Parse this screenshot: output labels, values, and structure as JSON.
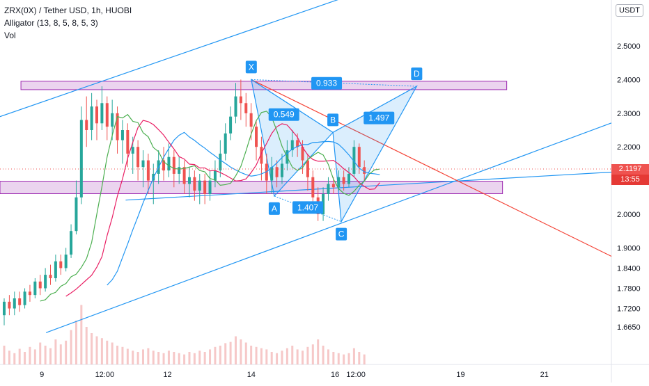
{
  "header": {
    "symbol_line": "ZRX(0X) / Tether USD, 1h, HUOBI",
    "indicator_line": "Alligator (13, 8, 5, 8, 5, 3)",
    "volume_line": "Vol"
  },
  "currency_label": "USDT",
  "last_price": {
    "value": "2.1197",
    "countdown": "13:55"
  },
  "colors": {
    "jaw": "#2196f3",
    "teeth": "#e91e63",
    "lips": "#4caf50",
    "candle_up": "#26a69a",
    "candle_down": "#ef5350",
    "volume": "#ef9a9a",
    "channel": "#2196f3",
    "pattern": "#2196f3",
    "zone": "#9c27b0",
    "downtrend": "#f44336",
    "price_tag_top": "#ef5350",
    "price_tag_bottom": "#e53935"
  },
  "chart_data": {
    "type": "candlestick",
    "y_axis_ticks": [
      "2.5000",
      "2.4000",
      "2.3000",
      "2.2000",
      "2.1000",
      "2.0000",
      "1.9000",
      "1.8400",
      "1.7800",
      "1.7200",
      "1.6650"
    ],
    "y_axis_ticks_values": [
      2.5,
      2.4,
      2.3,
      2.2,
      2.1,
      2.0,
      1.9,
      1.84,
      1.78,
      1.72,
      1.665
    ],
    "x_axis_ticks": [
      {
        "label": "9",
        "x": 8.0
      },
      {
        "label": "12:00",
        "x": 9.5
      },
      {
        "label": "12",
        "x": 11.0
      },
      {
        "label": "14",
        "x": 13.0
      },
      {
        "label": "16",
        "x": 15.0
      },
      {
        "label": "12:00",
        "x": 15.5
      },
      {
        "label": "19",
        "x": 18.0
      },
      {
        "label": "21",
        "x": 20.0
      }
    ],
    "x_range": [
      7.0,
      21.6
    ],
    "harmonic_pattern": {
      "points": [
        {
          "label": "X",
          "x": 13.0,
          "y": 2.4
        },
        {
          "label": "A",
          "x": 13.55,
          "y": 2.054
        },
        {
          "label": "B",
          "x": 14.95,
          "y": 2.243
        },
        {
          "label": "C",
          "x": 15.15,
          "y": 1.978
        },
        {
          "label": "D",
          "x": 16.95,
          "y": 2.38
        }
      ],
      "ratios": [
        {
          "label": "0.549",
          "x": 13.78,
          "y": 2.296
        },
        {
          "label": "1.497",
          "x": 16.05,
          "y": 2.286
        },
        {
          "label": "1.407",
          "x": 14.35,
          "y": 2.02
        },
        {
          "label": "0.933",
          "x": 14.8,
          "y": 2.389
        }
      ]
    },
    "resistance_zone": {
      "x_from": 7.5,
      "x_to": 19.1,
      "y_low": 2.37,
      "y_high": 2.395
    },
    "support_zone": {
      "x_from": 7.0,
      "x_to": 19.0,
      "y_low": 2.061,
      "y_high": 2.098
    },
    "channel_lines": [
      {
        "x1": 7.0,
        "y1": 2.29,
        "x2": 18.5,
        "y2": 2.785
      },
      {
        "x1": 8.1,
        "y1": 1.648,
        "x2": 21.6,
        "y2": 2.271
      },
      {
        "x1": 10.0,
        "y1": 2.042,
        "x2": 21.6,
        "y2": 2.125
      }
    ],
    "downtrend_line": {
      "x1": 13.0,
      "y1": 2.4,
      "x2": 21.6,
      "y2": 1.875
    },
    "series": [
      {
        "name": "candles",
        "open_close_note": "synthetic reading"
      }
    ],
    "candles": [
      [
        1.7,
        1.74,
        1.67,
        1.75
      ],
      [
        1.74,
        1.72,
        1.7,
        1.76
      ],
      [
        1.72,
        1.75,
        1.7,
        1.77
      ],
      [
        1.75,
        1.73,
        1.71,
        1.77
      ],
      [
        1.73,
        1.77,
        1.72,
        1.78
      ],
      [
        1.77,
        1.76,
        1.74,
        1.79
      ],
      [
        1.76,
        1.8,
        1.75,
        1.81
      ],
      [
        1.8,
        1.78,
        1.76,
        1.82
      ],
      [
        1.78,
        1.82,
        1.77,
        1.84
      ],
      [
        1.82,
        1.81,
        1.79,
        1.85
      ],
      [
        1.81,
        1.86,
        1.8,
        1.88
      ],
      [
        1.86,
        1.84,
        1.82,
        1.88
      ],
      [
        1.84,
        1.88,
        1.83,
        1.9
      ],
      [
        1.88,
        1.95,
        1.87,
        1.97
      ],
      [
        1.95,
        2.05,
        1.94,
        2.1
      ],
      [
        2.05,
        2.28,
        2.03,
        2.32
      ],
      [
        2.28,
        2.25,
        2.2,
        2.35
      ],
      [
        2.25,
        2.32,
        2.22,
        2.36
      ],
      [
        2.32,
        2.27,
        2.22,
        2.34
      ],
      [
        2.27,
        2.33,
        2.25,
        2.38
      ],
      [
        2.33,
        2.26,
        2.22,
        2.35
      ],
      [
        2.26,
        2.3,
        2.22,
        2.34
      ],
      [
        2.3,
        2.22,
        2.18,
        2.32
      ],
      [
        2.22,
        2.25,
        2.15,
        2.28
      ],
      [
        2.25,
        2.18,
        2.14,
        2.27
      ],
      [
        2.18,
        2.2,
        2.12,
        2.23
      ],
      [
        2.2,
        2.14,
        2.1,
        2.22
      ],
      [
        2.14,
        2.16,
        2.08,
        2.19
      ],
      [
        2.16,
        2.1,
        2.06,
        2.18
      ],
      [
        2.1,
        2.12,
        2.03,
        2.15
      ],
      [
        2.12,
        2.16,
        2.09,
        2.19
      ],
      [
        2.16,
        2.13,
        2.1,
        2.2
      ],
      [
        2.13,
        2.17,
        2.11,
        2.21
      ],
      [
        2.17,
        2.12,
        2.08,
        2.19
      ],
      [
        2.12,
        2.14,
        2.09,
        2.17
      ],
      [
        2.14,
        2.09,
        2.06,
        2.16
      ],
      [
        2.09,
        2.11,
        2.05,
        2.14
      ],
      [
        2.11,
        2.07,
        2.04,
        2.13
      ],
      [
        2.07,
        2.1,
        2.03,
        2.12
      ],
      [
        2.1,
        2.06,
        2.03,
        2.12
      ],
      [
        2.06,
        2.1,
        2.04,
        2.13
      ],
      [
        2.1,
        2.13,
        2.08,
        2.16
      ],
      [
        2.13,
        2.18,
        2.11,
        2.22
      ],
      [
        2.18,
        2.24,
        2.16,
        2.27
      ],
      [
        2.24,
        2.29,
        2.22,
        2.32
      ],
      [
        2.29,
        2.35,
        2.27,
        2.39
      ],
      [
        2.35,
        2.33,
        2.28,
        2.4
      ],
      [
        2.33,
        2.3,
        2.26,
        2.36
      ],
      [
        2.3,
        2.26,
        2.22,
        2.33
      ],
      [
        2.26,
        2.2,
        2.16,
        2.28
      ],
      [
        2.2,
        2.15,
        2.1,
        2.23
      ],
      [
        2.15,
        2.1,
        2.06,
        2.18
      ],
      [
        2.1,
        2.14,
        2.06,
        2.17
      ],
      [
        2.14,
        2.11,
        2.08,
        2.16
      ],
      [
        2.11,
        2.15,
        2.09,
        2.18
      ],
      [
        2.15,
        2.19,
        2.13,
        2.22
      ],
      [
        2.19,
        2.22,
        2.17,
        2.25
      ],
      [
        2.22,
        2.2,
        2.17,
        2.24
      ],
      [
        2.2,
        2.16,
        2.12,
        2.22
      ],
      [
        2.16,
        2.11,
        2.07,
        2.18
      ],
      [
        2.11,
        2.05,
        2.02,
        2.13
      ],
      [
        2.05,
        2.0,
        1.98,
        2.08
      ],
      [
        2.0,
        2.06,
        1.98,
        2.08
      ],
      [
        2.06,
        2.09,
        2.04,
        2.11
      ],
      [
        2.09,
        2.08,
        2.06,
        2.11
      ],
      [
        2.08,
        2.11,
        2.07,
        2.13
      ],
      [
        2.11,
        2.09,
        2.07,
        2.13
      ],
      [
        2.09,
        2.12,
        2.08,
        2.14
      ],
      [
        2.12,
        2.2,
        2.11,
        2.22
      ],
      [
        2.2,
        2.14,
        2.12,
        2.21
      ],
      [
        2.14,
        2.12,
        2.1,
        2.16
      ]
    ],
    "volumes": [
      0.3,
      0.22,
      0.18,
      0.25,
      0.2,
      0.28,
      0.24,
      0.35,
      0.3,
      0.26,
      0.4,
      0.32,
      0.38,
      0.55,
      0.7,
      0.95,
      0.6,
      0.5,
      0.45,
      0.42,
      0.38,
      0.35,
      0.3,
      0.28,
      0.25,
      0.22,
      0.2,
      0.24,
      0.26,
      0.22,
      0.2,
      0.18,
      0.22,
      0.2,
      0.18,
      0.16,
      0.2,
      0.18,
      0.22,
      0.2,
      0.24,
      0.28,
      0.3,
      0.34,
      0.36,
      0.45,
      0.4,
      0.35,
      0.3,
      0.28,
      0.26,
      0.24,
      0.2,
      0.18,
      0.22,
      0.26,
      0.3,
      0.24,
      0.22,
      0.28,
      0.32,
      0.4,
      0.3,
      0.24,
      0.2,
      0.18,
      0.16,
      0.18,
      0.26,
      0.2,
      0.16
    ]
  }
}
